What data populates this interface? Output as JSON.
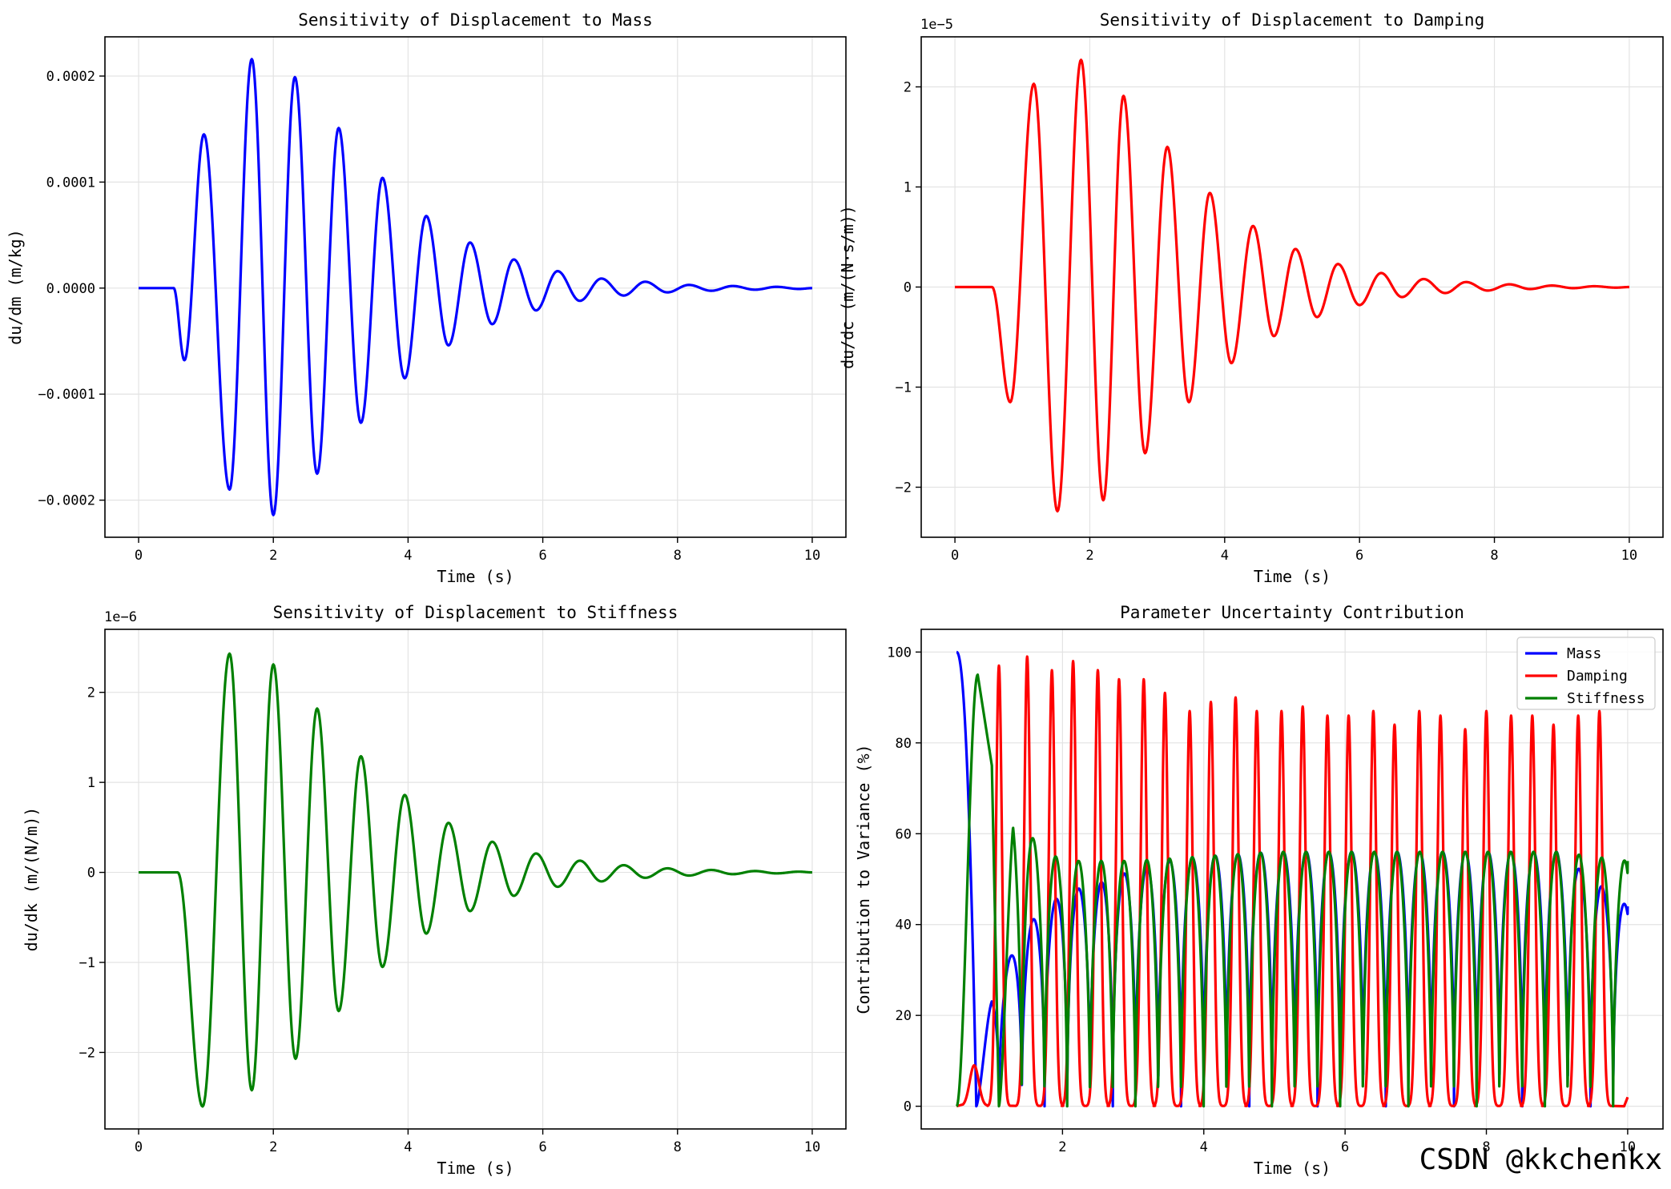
{
  "chart_data": [
    {
      "type": "line",
      "title": "Sensitivity of Displacement to Mass",
      "xlabel": "Time (s)",
      "ylabel": "du/dm (m/kg)",
      "offset_text": "",
      "xlim": [
        -0.5,
        10.5
      ],
      "ylim": [
        -0.000235,
        0.000237
      ],
      "xticks": [
        0,
        2,
        4,
        6,
        8,
        10
      ],
      "xtick_labels": [
        "0",
        "2",
        "4",
        "6",
        "8",
        "10"
      ],
      "yticks": [
        -0.0002,
        -0.0001,
        0.0,
        0.0001,
        0.0002
      ],
      "ytick_labels": [
        "−0.0002",
        "−0.0001",
        "0.0000",
        "0.0001",
        "0.0002"
      ],
      "grid": true,
      "series": [
        {
          "color": "#0000ff",
          "envelope": "x=0:y=0; x=0.52:y=0; x=0.68:y=-6.8e-5; x=0.97:y=0.000145; x=1.35:y=-0.00019; x=1.68:y=0.000216; x=2.0:y=-0.000214; x=2.32:y=0.000199; x=2.65:y=-0.000175; x=2.97:y=0.000151; x=3.3:y=-0.000127; x=3.62:y=0.000104; x=3.95:y=-8.5e-5; x=4.27:y=6.8e-5; x=4.6:y=-5.4e-5; x=4.92:y=4.3e-5; x=5.25:y=-3.4e-5; x=5.57:y=2.7e-5; x=5.9:y=-2.1e-5; x=6.22:y=1.6e-5; x=6.55:y=-1.2e-5; x=6.87:y=9e-6; x=7.2:y=-7e-6; x=7.52:y=6e-6; x=7.85:y=-4e-6; x=8.17:y=3e-6; x=8.5:y=-2.5e-6; x=8.82:y=2e-6; x=9.15:y=-1.5e-6; x=9.47:y=1.2e-6; x=9.8:y=-8e-7; x=10.0:y=0"
        }
      ]
    },
    {
      "type": "line",
      "title": "Sensitivity of Displacement to Damping",
      "xlabel": "Time (s)",
      "ylabel": "du/dc (m/(N·s/m))",
      "offset_text": "1e−5",
      "xlim": [
        -0.5,
        10.5
      ],
      "ylim": [
        -2.5e-05,
        2.5e-05
      ],
      "xticks": [
        0,
        2,
        4,
        6,
        8,
        10
      ],
      "xtick_labels": [
        "0",
        "2",
        "4",
        "6",
        "8",
        "10"
      ],
      "yticks": [
        -2e-05,
        -1e-05,
        0,
        1e-05,
        2e-05
      ],
      "ytick_labels": [
        "−2",
        "−1",
        "0",
        "1",
        "2"
      ],
      "grid": true,
      "series": [
        {
          "color": "#ff0000",
          "envelope": "x=0:y=0; x=0.55:y=0; x=0.82:y=-1.15e-5; x=1.17:y=2.03e-5; x=1.52:y=-2.24e-5; x=1.87:y=2.27e-5; x=2.2:y=-2.13e-5; x=2.5:y=1.91e-5; x=2.82:y=-1.66e-5; x=3.15:y=1.4e-5; x=3.47:y=-1.15e-5; x=3.78:y=9.4e-6; x=4.1:y=-7.6e-6; x=4.42:y=6.1e-6; x=4.73:y=-4.9e-6; x=5.05:y=3.8e-6; x=5.37:y=-3e-6; x=5.68:y=2.3e-6; x=6.0:y=-1.8e-6; x=6.32:y=1.4e-6; x=6.63:y=-1e-6; x=6.95:y=8e-7; x=7.27:y=-6e-7; x=7.58:y=5e-7; x=7.9:y=-3.5e-7; x=8.22:y=2.7e-7; x=8.53:y=-2e-7; x=8.85:y=1.5e-7; x=9.17:y=-1.1e-7; x=9.48:y=8e-8; x=9.8:y=-6e-8; x=10.0:y=0"
        }
      ]
    },
    {
      "type": "line",
      "title": "Sensitivity of Displacement to Stiffness",
      "xlabel": "Time (s)",
      "ylabel": "du/dk (m/(N/m))",
      "offset_text": "1e−6",
      "xlim": [
        -0.5,
        10.5
      ],
      "ylim": [
        -2.85e-06,
        2.7e-06
      ],
      "xticks": [
        0,
        2,
        4,
        6,
        8,
        10
      ],
      "xtick_labels": [
        "0",
        "2",
        "4",
        "6",
        "8",
        "10"
      ],
      "yticks": [
        -2e-06,
        -1e-06,
        0,
        1e-06,
        2e-06
      ],
      "ytick_labels": [
        "−2",
        "−1",
        "0",
        "1",
        "2"
      ],
      "grid": true,
      "series": [
        {
          "color": "#008000",
          "envelope": "x=0:y=0; x=0.58:y=0; x=0.95:y=-2.6e-6; x=1.35:y=2.43e-6; x=1.68:y=-2.42e-6; x=2.0:y=2.31e-6; x=2.33:y=-2.07e-6; x=2.65:y=1.82e-6; x=2.97:y=-1.54e-6; x=3.3:y=1.29e-6; x=3.62:y=-1.05e-6; x=3.95:y=8.6e-7; x=4.27:y=-6.8e-7; x=4.6:y=5.5e-7; x=4.92:y=-4.3e-7; x=5.25:y=3.4e-7; x=5.57:y=-2.6e-7; x=5.9:y=2.1e-7; x=6.22:y=-1.6e-7; x=6.55:y=1.3e-7; x=6.87:y=-1e-7; x=7.2:y=8e-8; x=7.52:y=-6e-8; x=7.85:y=4.5e-8; x=8.17:y=-3.5e-8; x=8.5:y=2.7e-8; x=8.82:y=-2e-8; x=9.15:y=1.5e-8; x=9.47:y=-1.1e-8; x=9.8:y=8e-9; x=10.0:y=0"
        }
      ]
    },
    {
      "type": "line",
      "title": "Parameter Uncertainty Contribution",
      "xlabel": "Time (s)",
      "ylabel": "Contribution to Variance (%)",
      "offset_text": "",
      "xlim": [
        0.0,
        10.5
      ],
      "ylim": [
        -5,
        105
      ],
      "xticks": [
        2,
        4,
        6,
        8,
        10
      ],
      "xtick_labels": [
        "2",
        "4",
        "6",
        "8",
        "10"
      ],
      "yticks": [
        0,
        20,
        40,
        60,
        80,
        100
      ],
      "ytick_labels": [
        "0",
        "20",
        "40",
        "60",
        "80",
        "100"
      ],
      "grid": true,
      "legend": "top-right",
      "series": [
        {
          "name": "Mass",
          "color": "#0000ff",
          "description": "starts near 100 at t=0.5, drops to ~0 near t=0.8, then oscillates rapidly (period ~0.32 s) between ~0 and a rising envelope: ~25 (t=1), ~40 (t=1.5), ~47 (t=2), ~52 (t=3), ~55 (t=4), ~56 (t>=5); ends near 44 at t=10",
          "envelope_peaks": "t=0.5:100; t=0.78:0; t=1.0:25; t=1.5:40; t=1.8:44; t=2.0:47; t=2.5:49; t=3.0:52; t=3.5:54; t=4.0:55; t=5.0:56; t=6.0:56; t=7.0:56; t=8.0:56; t=9.0:56; t=10.0:44"
        },
        {
          "name": "Damping",
          "color": "#ff0000",
          "description": "near 0 until t~0.8 (small bump ~9), then sharp spikes every ~0.32 s reaching ~97-99 early and ~84-88 later, dropping to ~0 between spikes",
          "spike_peaks": "t=0.75:9; t=1.1:97; t=1.5:99; t=1.85:96; t=2.15:98; t=2.5:96; t=2.8:94; t=3.15:94; t=3.45:91; t=3.8:87; t=4.1:89; t=4.45:90; t=4.75:87; t=5.1:87; t=5.4:88; t=5.75:86; t=6.05:86; t=6.4:87; t=6.7:84; t=7.05:87; t=7.35:86; t=7.7:83; t=8.0:87; t=8.35:86; t=8.65:86; t=8.95:84; t=9.3:86; t=9.6:87; t=10.0:2"
        },
        {
          "name": "Stiffness",
          "color": "#008000",
          "description": "rises from 0 at t=0.5 to ~95 at t~0.8, falls to ~75 then to ~0 near t=1.1; afterwards oscillates between ~0 and ~54-56 with period ~0.32 s; ~64 peak at t~1.3 and ~56 at t~1.7",
          "envelope_peaks": "t=0.5:0; t=0.8:95; t=1.0:75; t=1.1:0; t=1.3:64; t=1.75:56; t=2.05:54; t=2.4:54; t=3.0:54; t=4.0:55; t=5.0:56; t=6.0:56; t=7.0:56; t=8.0:56; t=9.0:56; t=10.0:54"
        }
      ]
    }
  ],
  "watermark": "CSDN @kkchenkx"
}
